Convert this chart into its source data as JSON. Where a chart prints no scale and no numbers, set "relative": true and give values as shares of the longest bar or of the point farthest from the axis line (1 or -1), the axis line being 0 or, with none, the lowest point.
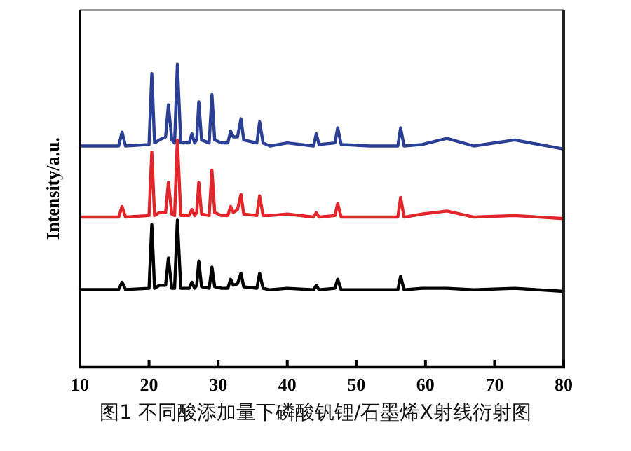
{
  "chart_data": {
    "type": "line",
    "relative": true,
    "ylabel": "Intensity/a.u.",
    "xlim": [
      10,
      80
    ],
    "xticks": [
      10,
      20,
      30,
      40,
      50,
      60,
      70,
      80
    ],
    "grid": false,
    "marker": "none",
    "line_style": "solid",
    "annotations": [
      "图1  不同酸添加量下磷酸钒锂/石墨烯X射线衍射图"
    ],
    "x": [
      10,
      15.6,
      16.1,
      16.6,
      20.0,
      20.4,
      20.8,
      21.5,
      22.4,
      22.8,
      23.3,
      23.7,
      24.1,
      24.6,
      25.8,
      26.2,
      26.6,
      26.9,
      27.2,
      27.6,
      28.7,
      29.1,
      29.5,
      30.5,
      31.4,
      31.8,
      32.2,
      32.8,
      33.3,
      33.7,
      35.6,
      36.0,
      36.5,
      37.5,
      40.0,
      43.8,
      44.2,
      44.6,
      46.9,
      47.3,
      47.8,
      52,
      56.0,
      56.4,
      56.9,
      59.5,
      63.1,
      67,
      72.9,
      80
    ],
    "series": [
      {
        "color": "#2b3f95",
        "values": [
          0.73,
          0.73,
          0.776,
          0.73,
          0.735,
          0.969,
          0.74,
          0.75,
          0.76,
          0.866,
          0.75,
          0.74,
          1.0,
          0.74,
          0.74,
          0.77,
          0.74,
          0.75,
          0.876,
          0.75,
          0.74,
          0.9,
          0.75,
          0.74,
          0.74,
          0.78,
          0.76,
          0.76,
          0.82,
          0.75,
          0.74,
          0.81,
          0.74,
          0.73,
          0.74,
          0.73,
          0.77,
          0.735,
          0.74,
          0.79,
          0.735,
          0.73,
          0.73,
          0.79,
          0.73,
          0.735,
          0.755,
          0.73,
          0.75,
          0.72
        ]
      },
      {
        "color": "#e0262a",
        "values": [
          0.495,
          0.495,
          0.53,
          0.495,
          0.5,
          0.71,
          0.5,
          0.51,
          0.51,
          0.61,
          0.505,
          0.5,
          0.75,
          0.5,
          0.5,
          0.52,
          0.5,
          0.51,
          0.61,
          0.505,
          0.5,
          0.65,
          0.51,
          0.5,
          0.5,
          0.53,
          0.51,
          0.52,
          0.57,
          0.505,
          0.5,
          0.565,
          0.5,
          0.5,
          0.505,
          0.495,
          0.51,
          0.495,
          0.5,
          0.54,
          0.495,
          0.495,
          0.495,
          0.56,
          0.495,
          0.505,
          0.515,
          0.495,
          0.5,
          0.49
        ]
      },
      {
        "color": "#000000",
        "values": [
          0.256,
          0.256,
          0.28,
          0.256,
          0.26,
          0.47,
          0.26,
          0.27,
          0.27,
          0.36,
          0.26,
          0.26,
          0.485,
          0.26,
          0.26,
          0.28,
          0.26,
          0.27,
          0.35,
          0.265,
          0.26,
          0.33,
          0.265,
          0.26,
          0.26,
          0.29,
          0.27,
          0.275,
          0.31,
          0.265,
          0.26,
          0.31,
          0.26,
          0.255,
          0.26,
          0.255,
          0.27,
          0.255,
          0.26,
          0.29,
          0.255,
          0.255,
          0.255,
          0.3,
          0.255,
          0.26,
          0.26,
          0.255,
          0.26,
          0.25
        ]
      }
    ]
  }
}
